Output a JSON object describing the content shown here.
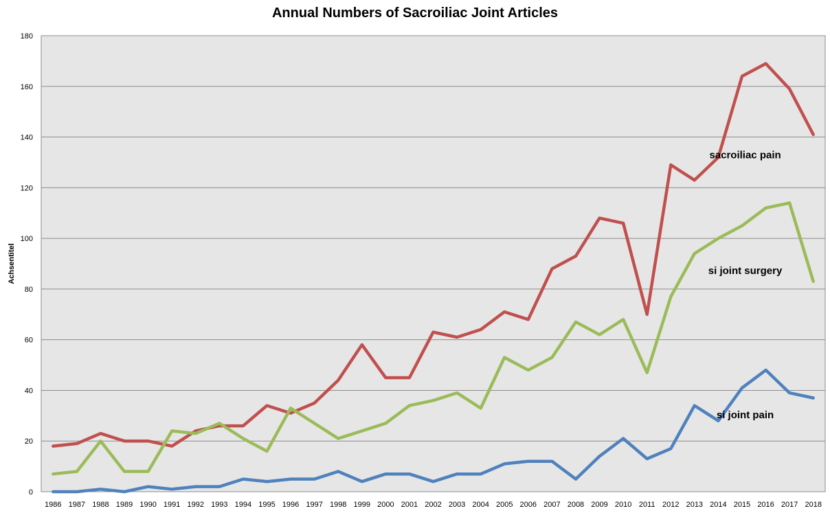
{
  "chart_data": {
    "type": "line",
    "title": "Annual Numbers of Sacroiliac Joint Articles",
    "xlabel": "",
    "ylabel": "Achsentitel",
    "ylim": [
      0,
      180
    ],
    "yticks": [
      0,
      20,
      40,
      60,
      80,
      100,
      120,
      140,
      160,
      180
    ],
    "grid": true,
    "categories": [
      "1986",
      "1987",
      "1988",
      "1989",
      "1990",
      "1991",
      "1992",
      "1993",
      "1994",
      "1995",
      "1996",
      "1997",
      "1998",
      "1999",
      "2000",
      "2001",
      "2002",
      "2003",
      "2004",
      "2005",
      "2006",
      "2007",
      "2008",
      "2009",
      "2010",
      "2011",
      "2012",
      "2013",
      "2014",
      "2015",
      "2016",
      "2017",
      "2018"
    ],
    "series": [
      {
        "name": "sacroiliac pain",
        "color": "#c0504d",
        "values": [
          18,
          19,
          23,
          20,
          20,
          18,
          24,
          26,
          26,
          34,
          31,
          35,
          44,
          58,
          45,
          45,
          63,
          61,
          64,
          71,
          68,
          88,
          93,
          108,
          106,
          70,
          129,
          123,
          132,
          164,
          169,
          159,
          141
        ]
      },
      {
        "name": "si joint surgery",
        "color": "#9bbb59",
        "values": [
          7,
          8,
          20,
          8,
          8,
          24,
          23,
          27,
          21,
          16,
          33,
          27,
          21,
          24,
          27,
          34,
          36,
          39,
          33,
          53,
          48,
          53,
          67,
          62,
          68,
          47,
          77,
          94,
          100,
          105,
          112,
          114,
          83
        ]
      },
      {
        "name": "si joint pain",
        "color": "#4f81bd",
        "values": [
          0,
          0,
          1,
          0,
          2,
          1,
          2,
          2,
          5,
          4,
          5,
          5,
          8,
          4,
          7,
          7,
          4,
          7,
          7,
          11,
          12,
          12,
          5,
          14,
          21,
          13,
          17,
          34,
          28,
          41,
          48,
          39,
          37
        ]
      }
    ],
    "plot_background": "#e6e6e6",
    "grid_color": "#8c8c8c"
  }
}
